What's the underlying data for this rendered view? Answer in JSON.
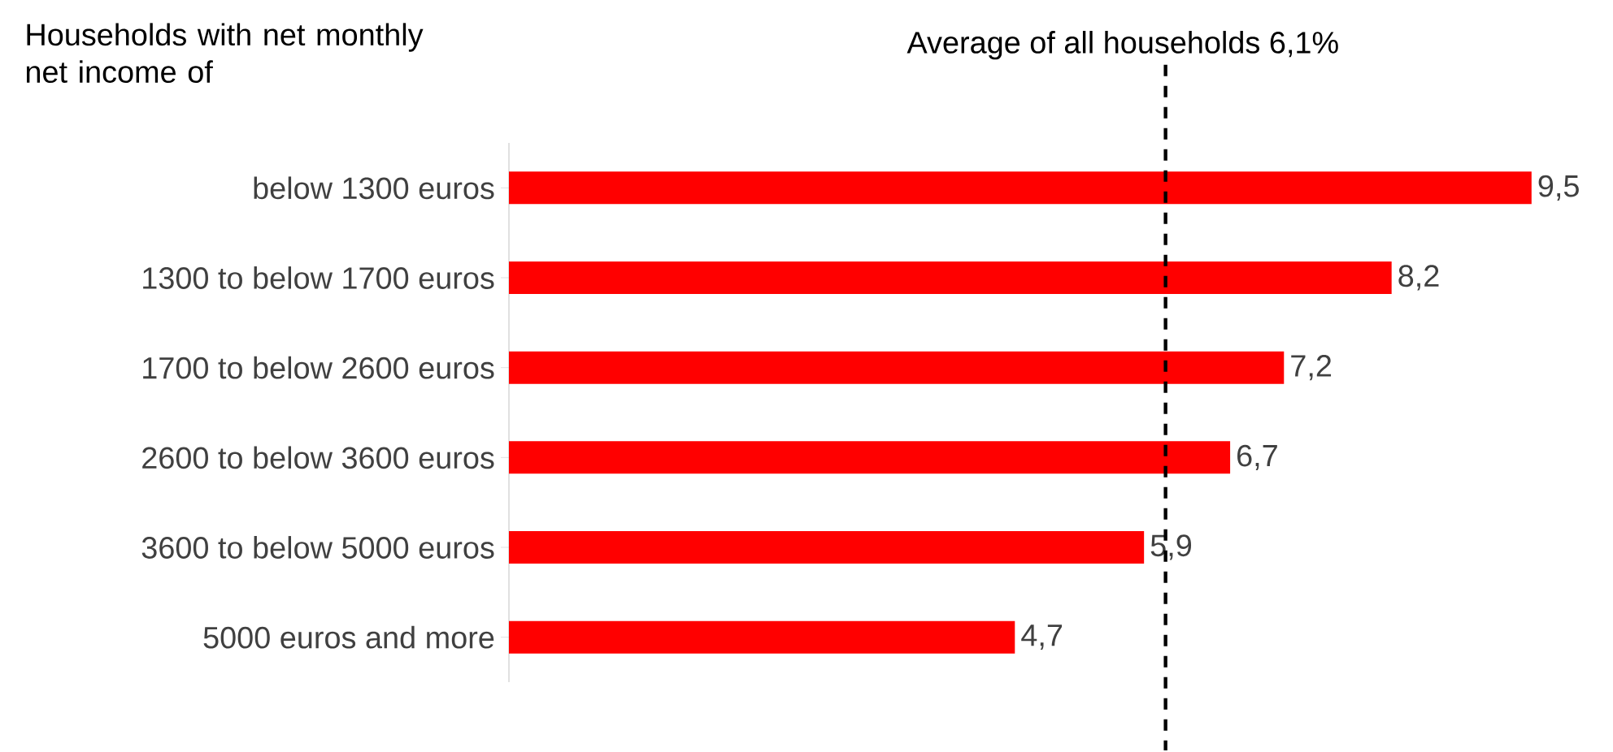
{
  "chart_data": {
    "type": "bar",
    "orientation": "horizontal",
    "annotations": [
      "Households with net monthly net income of"
    ],
    "categories": [
      "below 1300 euros",
      "1300 to below 1700 euros",
      "1700 to below 2600 euros",
      "2600 to below 3600 euros",
      "3600 to below 5000 euros",
      "5000 euros and more"
    ],
    "values": [
      9.5,
      8.2,
      7.2,
      6.7,
      5.9,
      4.7
    ],
    "value_labels": [
      "9,5",
      "8,2",
      "7,2",
      "6,7",
      "5,9",
      "4,7"
    ],
    "color": "#ff0000",
    "tick_labels": "y",
    "ref_lines": [
      {
        "axis": "x",
        "value": 6.1,
        "label": "Average of all households 6,1%",
        "color": "#000000",
        "line_style": "dashed"
      }
    ]
  }
}
